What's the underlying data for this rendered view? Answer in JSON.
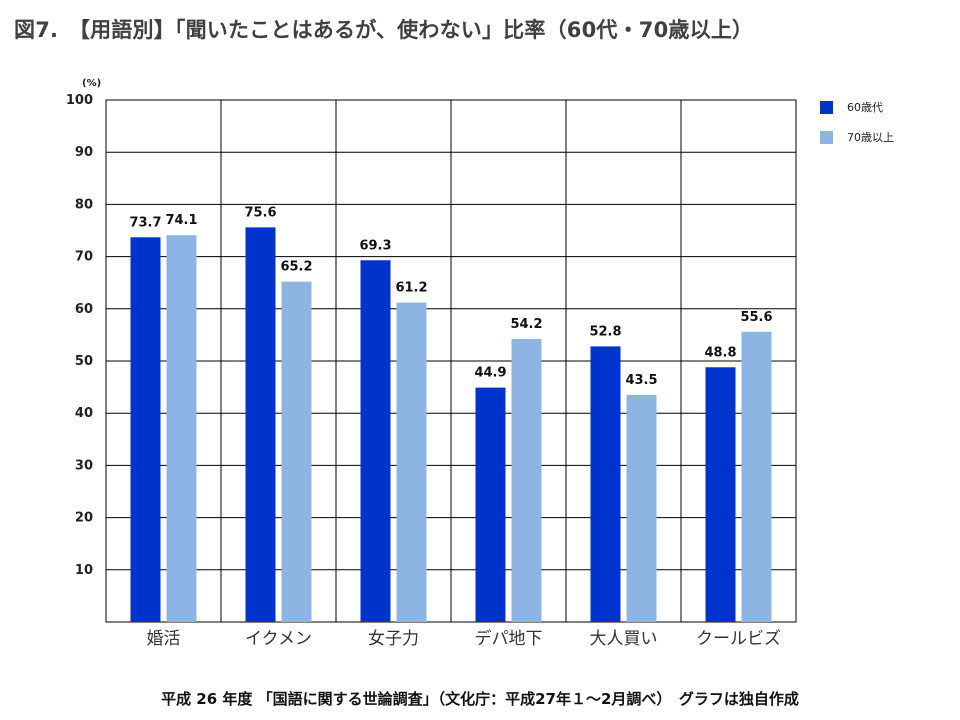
{
  "title": "図7.　【用語別】「聞いたことはあるが、使わない」比率（60代・70歳以上）",
  "footnote": "平成 26 年度 「国語に関する世論調査」（文化庁：平成27年１～2月調べ）　グラフは独自作成",
  "colors": {
    "series_60": "#0033cc",
    "series_70": "#8db4e2",
    "grid": "#000000"
  },
  "chart_data": {
    "type": "bar",
    "title": "「聞いたことはあるが、使わない」比率（60代・70歳以上）",
    "ylabel": "(%)",
    "xlabel": "",
    "ylim": [
      0,
      100
    ],
    "yticks": [
      10,
      20,
      30,
      40,
      50,
      60,
      70,
      80,
      90,
      100
    ],
    "grid": true,
    "legend_position": "top-right",
    "categories": [
      "婚活",
      "イクメン",
      "女子力",
      "デパ地下",
      "大人買い",
      "クールビズ"
    ],
    "series": [
      {
        "name": "60歳代",
        "values": [
          73.7,
          75.6,
          69.3,
          44.9,
          52.8,
          48.8
        ]
      },
      {
        "name": "70歳以上",
        "values": [
          74.1,
          65.2,
          61.2,
          54.2,
          43.5,
          55.6
        ]
      }
    ]
  }
}
